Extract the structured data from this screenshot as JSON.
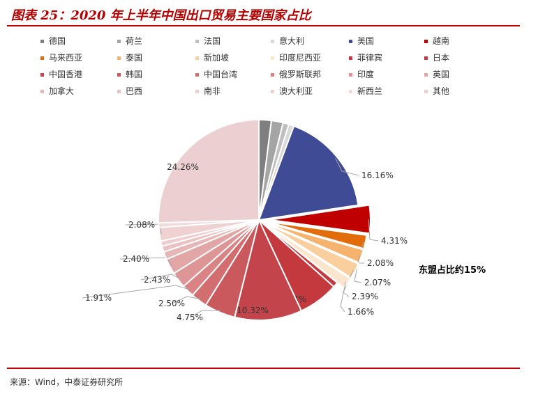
{
  "header": {
    "title": "图表 25：2020 年上半年中国出口贸易主要国家占比"
  },
  "footer": {
    "source": "来源：Wind，中泰证券研究所"
  },
  "chart_data": {
    "type": "pie",
    "title": "图表 25：2020 年上半年中国出口贸易主要国家占比",
    "legend_position": "top",
    "annotation": "东盟占比约15%",
    "slices": [
      {
        "name": "德国",
        "color": "#7f7f7f"
      },
      {
        "name": "荷兰",
        "color": "#a5a5a5"
      },
      {
        "name": "法国",
        "color": "#bfbfbf"
      },
      {
        "name": "意大利",
        "color": "#d9d9d9"
      },
      {
        "name": "美国",
        "color": "#3f4b94",
        "label": "16.16%"
      },
      {
        "name": "越南",
        "color": "#c00000",
        "label": "4.31%"
      },
      {
        "name": "马来西亚",
        "color": "#e26b0a",
        "label": "2.08%"
      },
      {
        "name": "泰国",
        "color": "#f5b36d",
        "label": "2.07%"
      },
      {
        "name": "新加坡",
        "color": "#f9cf9e",
        "label": "2.39%"
      },
      {
        "name": "印度尼西亚",
        "color": "#fce5cd",
        "label": "1.66%"
      },
      {
        "name": "菲律宾",
        "color": "#c3393e"
      },
      {
        "name": "日本",
        "color": "#c3393e",
        "label": "6.14%"
      },
      {
        "name": "中国香港",
        "color": "#c3444a",
        "label": "10.32%"
      },
      {
        "name": "韩国",
        "color": "#c9595d",
        "label": "4.75%"
      },
      {
        "name": "中国台湾",
        "color": "#d36e70",
        "label": "2.50%"
      },
      {
        "name": "俄罗斯联邦",
        "color": "#d98385",
        "label": "1.91%"
      },
      {
        "name": "印度",
        "color": "#dd9596",
        "label": "2.43%"
      },
      {
        "name": "英国",
        "color": "#e2a6a7",
        "label": "2.40%"
      },
      {
        "name": "加拿大",
        "color": "#e7b6b7"
      },
      {
        "name": "巴西",
        "color": "#ebc2c3"
      },
      {
        "name": "南非",
        "color": "#efcdce"
      },
      {
        "name": "澳大利亚",
        "color": "#efd1d2",
        "label": "2.08%"
      },
      {
        "name": "新西兰",
        "color": "#f2d9da"
      },
      {
        "name": "其他",
        "color": "#ebcfd1",
        "label": "24.26%"
      }
    ],
    "values": [
      1.9,
      1.8,
      0.9,
      0.8,
      16.16,
      4.31,
      2.08,
      2.07,
      2.39,
      1.66,
      0.8,
      6.14,
      10.32,
      4.75,
      2.5,
      1.91,
      2.43,
      2.4,
      1.2,
      0.9,
      0.8,
      2.08,
      0.7,
      24.26
    ]
  }
}
